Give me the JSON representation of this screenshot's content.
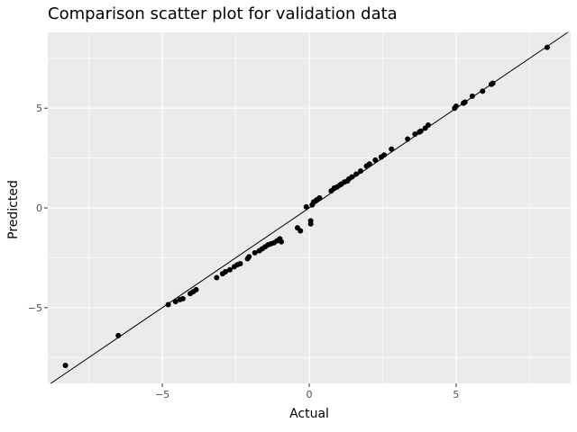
{
  "chart_data": {
    "type": "scatter",
    "title": "Comparison scatter plot for validation data",
    "xlabel": "Actual",
    "ylabel": "Predicted",
    "xlim": [
      -8.9,
      8.9
    ],
    "ylim": [
      -8.8,
      8.8
    ],
    "x_ticks": [
      -5,
      0,
      5
    ],
    "y_ticks": [
      -5,
      0,
      5
    ],
    "x_tick_labels": [
      "−5",
      "0",
      "5"
    ],
    "y_tick_labels": [
      "−5",
      "0",
      "5"
    ],
    "grid": true,
    "legend": "none",
    "reference_line": {
      "slope": 1,
      "intercept": 0
    },
    "colors": {
      "panel": "#ebebeb",
      "grid": "#ffffff",
      "points": "#000000",
      "line": "#000000"
    },
    "points": [
      {
        "x": -8.3,
        "y": -7.9
      },
      {
        "x": -6.5,
        "y": -6.4
      },
      {
        "x": -4.8,
        "y": -4.85
      },
      {
        "x": -4.55,
        "y": -4.7
      },
      {
        "x": -4.4,
        "y": -4.6
      },
      {
        "x": -4.3,
        "y": -4.55
      },
      {
        "x": -4.05,
        "y": -4.3
      },
      {
        "x": -3.95,
        "y": -4.2
      },
      {
        "x": -3.85,
        "y": -4.1
      },
      {
        "x": -3.15,
        "y": -3.5
      },
      {
        "x": -2.95,
        "y": -3.3
      },
      {
        "x": -2.85,
        "y": -3.2
      },
      {
        "x": -2.7,
        "y": -3.1
      },
      {
        "x": -2.55,
        "y": -2.95
      },
      {
        "x": -2.45,
        "y": -2.85
      },
      {
        "x": -2.35,
        "y": -2.8
      },
      {
        "x": -2.1,
        "y": -2.55
      },
      {
        "x": -2.05,
        "y": -2.45
      },
      {
        "x": -1.85,
        "y": -2.25
      },
      {
        "x": -1.7,
        "y": -2.15
      },
      {
        "x": -1.6,
        "y": -2.05
      },
      {
        "x": -1.5,
        "y": -1.95
      },
      {
        "x": -1.4,
        "y": -1.85
      },
      {
        "x": -1.3,
        "y": -1.8
      },
      {
        "x": -1.2,
        "y": -1.75
      },
      {
        "x": -1.1,
        "y": -1.65
      },
      {
        "x": -1.0,
        "y": -1.55
      },
      {
        "x": -0.95,
        "y": -1.7
      },
      {
        "x": -0.4,
        "y": -1.0
      },
      {
        "x": -0.3,
        "y": -1.15
      },
      {
        "x": 0.05,
        "y": -0.65
      },
      {
        "x": 0.05,
        "y": -0.8
      },
      {
        "x": -0.1,
        "y": 0.05
      },
      {
        "x": 0.1,
        "y": 0.15
      },
      {
        "x": 0.15,
        "y": 0.3
      },
      {
        "x": 0.25,
        "y": 0.4
      },
      {
        "x": 0.35,
        "y": 0.5
      },
      {
        "x": 0.75,
        "y": 0.85
      },
      {
        "x": 0.85,
        "y": 1.0
      },
      {
        "x": 0.95,
        "y": 1.05
      },
      {
        "x": 1.05,
        "y": 1.15
      },
      {
        "x": 1.1,
        "y": 1.2
      },
      {
        "x": 1.2,
        "y": 1.3
      },
      {
        "x": 1.3,
        "y": 1.35
      },
      {
        "x": 1.35,
        "y": 1.45
      },
      {
        "x": 1.45,
        "y": 1.55
      },
      {
        "x": 1.6,
        "y": 1.7
      },
      {
        "x": 1.75,
        "y": 1.85
      },
      {
        "x": 1.95,
        "y": 2.1
      },
      {
        "x": 2.05,
        "y": 2.2
      },
      {
        "x": 2.25,
        "y": 2.4
      },
      {
        "x": 2.45,
        "y": 2.55
      },
      {
        "x": 2.55,
        "y": 2.65
      },
      {
        "x": 2.8,
        "y": 2.95
      },
      {
        "x": 3.35,
        "y": 3.45
      },
      {
        "x": 3.6,
        "y": 3.7
      },
      {
        "x": 3.75,
        "y": 3.8
      },
      {
        "x": 3.8,
        "y": 3.85
      },
      {
        "x": 3.95,
        "y": 4.0
      },
      {
        "x": 4.05,
        "y": 4.15
      },
      {
        "x": 4.95,
        "y": 5.0
      },
      {
        "x": 5.0,
        "y": 5.1
      },
      {
        "x": 5.25,
        "y": 5.25
      },
      {
        "x": 5.3,
        "y": 5.3
      },
      {
        "x": 5.55,
        "y": 5.6
      },
      {
        "x": 5.9,
        "y": 5.85
      },
      {
        "x": 6.2,
        "y": 6.2
      },
      {
        "x": 6.25,
        "y": 6.25
      },
      {
        "x": 8.1,
        "y": 8.05
      }
    ]
  }
}
